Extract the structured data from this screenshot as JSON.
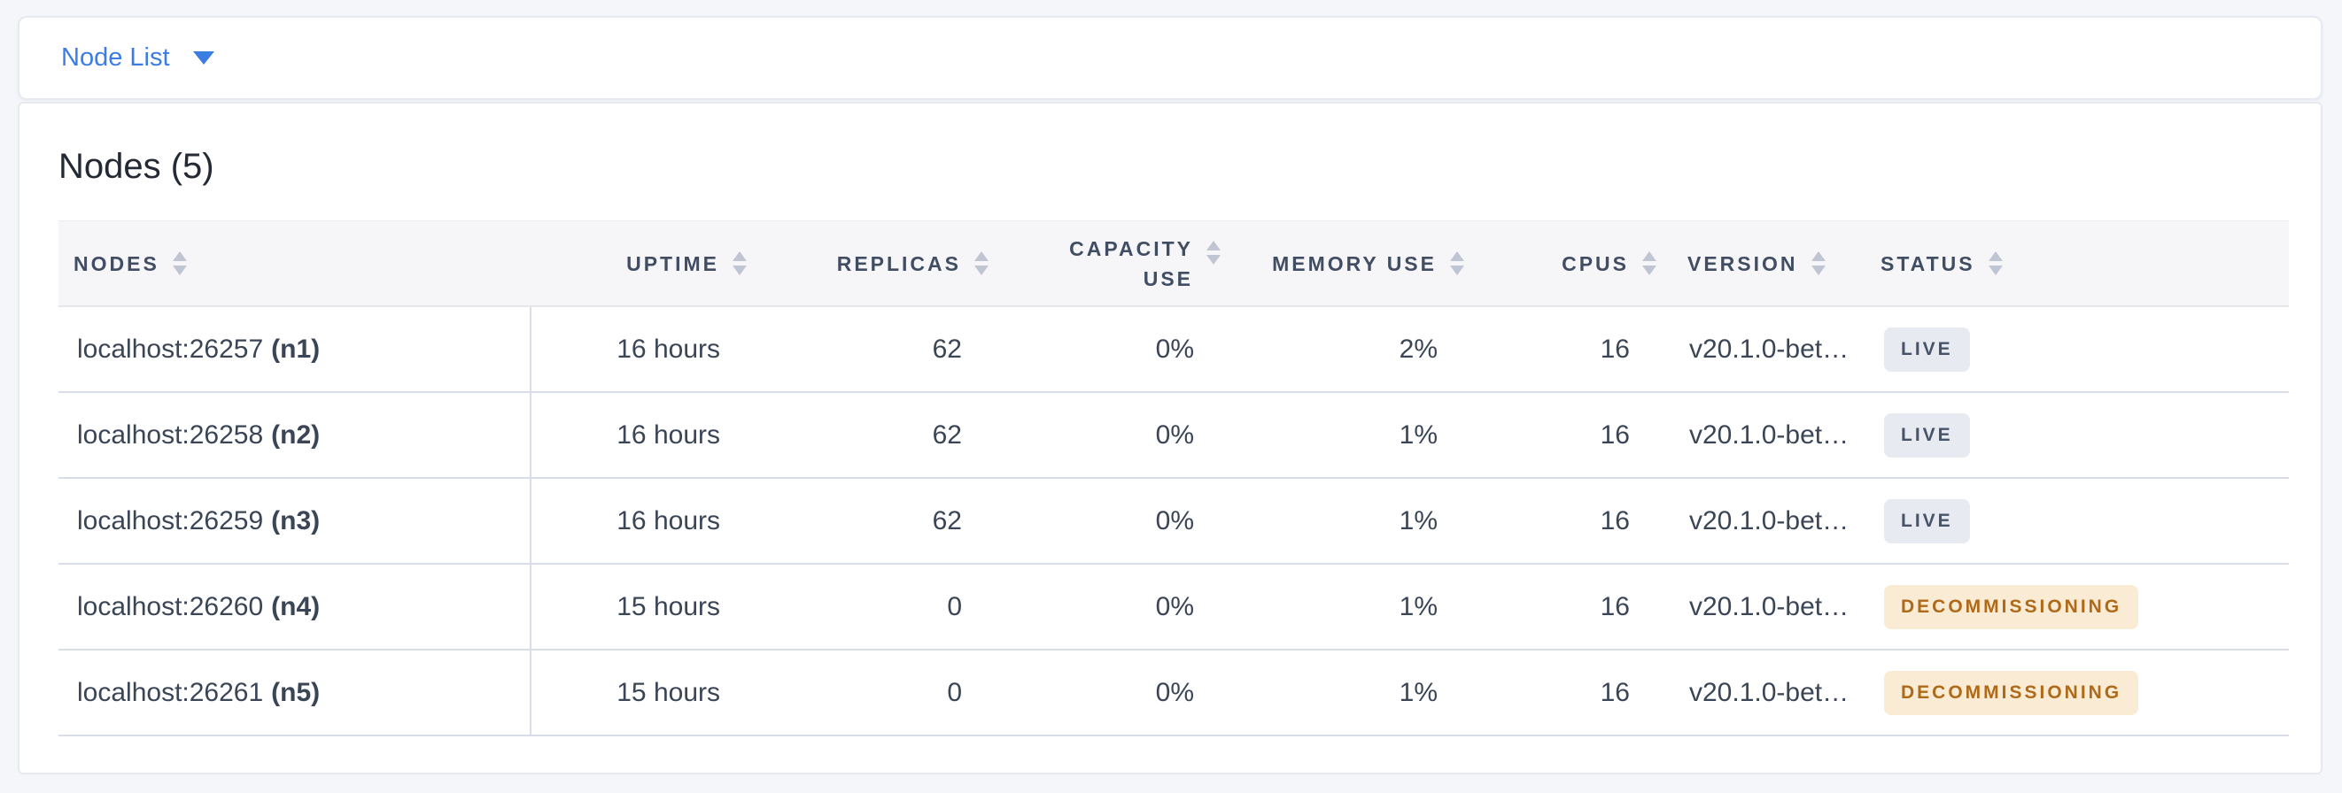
{
  "view_selector": {
    "label": "Node List"
  },
  "summary": {
    "title": "Nodes (5)"
  },
  "table": {
    "columns": [
      {
        "key": "nodes",
        "label": "NODES",
        "align": "left"
      },
      {
        "key": "uptime",
        "label": "UPTIME",
        "align": "right"
      },
      {
        "key": "replicas",
        "label": "REPLICAS",
        "align": "right"
      },
      {
        "key": "capacity_use",
        "label": "CAPACITY USE",
        "align": "right"
      },
      {
        "key": "memory_use",
        "label": "MEMORY USE",
        "align": "right"
      },
      {
        "key": "cpus",
        "label": "CPUS",
        "align": "right"
      },
      {
        "key": "version",
        "label": "VERSION",
        "align": "left"
      },
      {
        "key": "status",
        "label": "STATUS",
        "align": "left"
      }
    ],
    "rows": [
      {
        "address": "localhost:26257",
        "id": "(n1)",
        "uptime": "16 hours",
        "replicas": "62",
        "capacity_use": "0%",
        "memory_use": "2%",
        "cpus": "16",
        "version": "v20.1.0-bet…",
        "status": "LIVE",
        "status_class": "live"
      },
      {
        "address": "localhost:26258",
        "id": "(n2)",
        "uptime": "16 hours",
        "replicas": "62",
        "capacity_use": "0%",
        "memory_use": "1%",
        "cpus": "16",
        "version": "v20.1.0-bet…",
        "status": "LIVE",
        "status_class": "live"
      },
      {
        "address": "localhost:26259",
        "id": "(n3)",
        "uptime": "16 hours",
        "replicas": "62",
        "capacity_use": "0%",
        "memory_use": "1%",
        "cpus": "16",
        "version": "v20.1.0-bet…",
        "status": "LIVE",
        "status_class": "live"
      },
      {
        "address": "localhost:26260",
        "id": "(n4)",
        "uptime": "15 hours",
        "replicas": "0",
        "capacity_use": "0%",
        "memory_use": "1%",
        "cpus": "16",
        "version": "v20.1.0-bet…",
        "status": "DECOMMISSIONING",
        "status_class": "decommissioning"
      },
      {
        "address": "localhost:26261",
        "id": "(n5)",
        "uptime": "15 hours",
        "replicas": "0",
        "capacity_use": "0%",
        "memory_use": "1%",
        "cpus": "16",
        "version": "v20.1.0-bet…",
        "status": "DECOMMISSIONING",
        "status_class": "decommissioning"
      }
    ]
  },
  "colors": {
    "accent_blue": "#3C7DE2",
    "live_badge_bg": "#E7EAF1",
    "live_badge_text": "#475369",
    "decommissioning_badge_bg": "#FAEBD5",
    "decommissioning_badge_text": "#AE6A19"
  }
}
